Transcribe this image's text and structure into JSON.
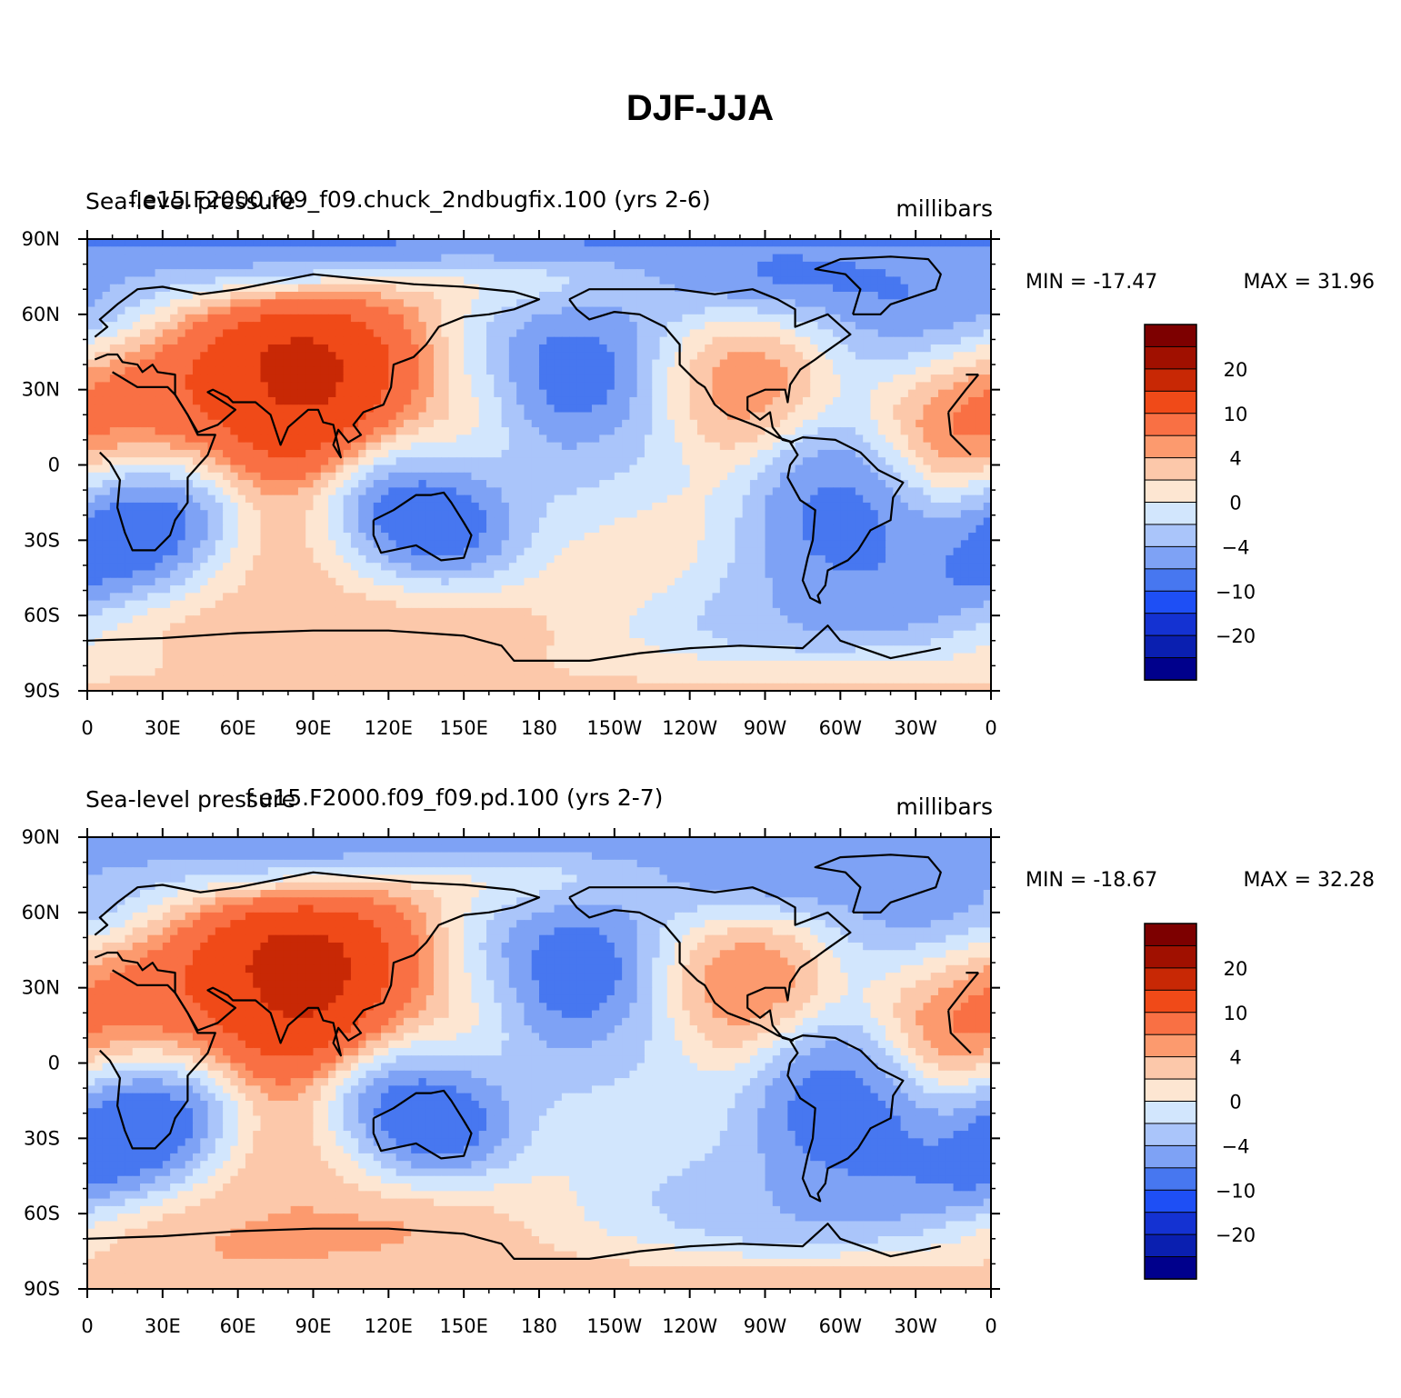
{
  "figure": {
    "title": "DJF-JJA"
  },
  "chart_data": [
    {
      "type": "heatmap",
      "title": "f.e15.F2000.f09_f09.chuck_2ndbugfix.100 (yrs 2-6)",
      "left_label": "Sea-level pressure",
      "units": "millibars",
      "min_label": "MIN = -17.47",
      "max_label": "MAX =  31.96",
      "min": -17.47,
      "max": 31.96,
      "lat_ticks": [
        "90N",
        "60N",
        "30N",
        "0",
        "30S",
        "60S",
        "90S"
      ],
      "lon_ticks": [
        "0",
        "30E",
        "60E",
        "90E",
        "120E",
        "150E",
        "180",
        "150W",
        "120W",
        "90W",
        "60W",
        "30W",
        "0"
      ],
      "colorbar_labels": [
        "20",
        "10",
        "4",
        "0",
        "-4",
        "-10",
        "-20"
      ],
      "field_features": [
        {
          "lon": 95,
          "lat": 45,
          "value": 26
        },
        {
          "lon": 75,
          "lat": 30,
          "value": 16
        },
        {
          "lon": 30,
          "lat": 28,
          "value": 13
        },
        {
          "lon": 140,
          "lat": 30,
          "value": 6
        },
        {
          "lon": 195,
          "lat": 45,
          "value": -15
        },
        {
          "lon": 160,
          "lat": 55,
          "value": -6
        },
        {
          "lon": 330,
          "lat": 62,
          "value": -15
        },
        {
          "lon": 10,
          "lat": 72,
          "value": -12
        },
        {
          "lon": 255,
          "lat": 42,
          "value": 9
        },
        {
          "lon": 350,
          "lat": 28,
          "value": 12
        },
        {
          "lon": 25,
          "lat": -22,
          "value": -13
        },
        {
          "lon": 130,
          "lat": -22,
          "value": -13
        },
        {
          "lon": 300,
          "lat": -20,
          "value": -9
        },
        {
          "lon": 210,
          "lat": 0,
          "value": -3
        },
        {
          "lon": 80,
          "lat": -48,
          "value": 8
        },
        {
          "lon": 230,
          "lat": -42,
          "value": 4
        },
        {
          "lon": 270,
          "lat": -62,
          "value": -8
        },
        {
          "lon": 90,
          "lat": -75,
          "value": 4
        },
        {
          "lon": 160,
          "lat": -78,
          "value": 6
        }
      ]
    },
    {
      "type": "heatmap",
      "title": "f.e15.F2000.f09_f09.pd.100 (yrs 2-7)",
      "left_label": "Sea-level pressure",
      "units": "millibars",
      "min_label": "MIN = -18.67",
      "max_label": "MAX =  32.28",
      "min": -18.67,
      "max": 32.28,
      "lat_ticks": [
        "90N",
        "60N",
        "30N",
        "0",
        "30S",
        "60S",
        "90S"
      ],
      "lon_ticks": [
        "0",
        "30E",
        "60E",
        "90E",
        "120E",
        "150E",
        "180",
        "150W",
        "120W",
        "90W",
        "60W",
        "30W",
        "0"
      ],
      "colorbar_labels": [
        "20",
        "10",
        "4",
        "0",
        "-4",
        "-10",
        "-20"
      ],
      "field_features": [
        {
          "lon": 95,
          "lat": 45,
          "value": 27
        },
        {
          "lon": 75,
          "lat": 30,
          "value": 17
        },
        {
          "lon": 30,
          "lat": 28,
          "value": 13
        },
        {
          "lon": 140,
          "lat": 30,
          "value": 6
        },
        {
          "lon": 195,
          "lat": 45,
          "value": -16
        },
        {
          "lon": 160,
          "lat": 55,
          "value": -6
        },
        {
          "lon": 330,
          "lat": 62,
          "value": -14
        },
        {
          "lon": 10,
          "lat": 72,
          "value": -11
        },
        {
          "lon": 255,
          "lat": 42,
          "value": 10
        },
        {
          "lon": 350,
          "lat": 28,
          "value": 12
        },
        {
          "lon": 25,
          "lat": -22,
          "value": -14
        },
        {
          "lon": 130,
          "lat": -22,
          "value": -13
        },
        {
          "lon": 300,
          "lat": -20,
          "value": -10
        },
        {
          "lon": 210,
          "lat": 0,
          "value": -3
        },
        {
          "lon": 80,
          "lat": -48,
          "value": 9
        },
        {
          "lon": 230,
          "lat": -42,
          "value": 3
        },
        {
          "lon": 240,
          "lat": -60,
          "value": -9
        },
        {
          "lon": 90,
          "lat": -75,
          "value": 5
        },
        {
          "lon": 170,
          "lat": -78,
          "value": 8
        }
      ]
    }
  ],
  "colors": {
    "levels": [
      -25,
      -20,
      -15,
      -10,
      -6,
      -4,
      -2,
      0,
      2,
      4,
      6,
      10,
      15,
      20,
      25
    ],
    "palette": [
      "#00008c",
      "#0a1fb0",
      "#1432d2",
      "#1e4ff5",
      "#4777f0",
      "#7ea2f5",
      "#aac5fa",
      "#d2e6fd",
      "#fde6d2",
      "#fcc8aa",
      "#fc9a6e",
      "#f97044",
      "#f04a18",
      "#c82805",
      "#a01000",
      "#7d0000"
    ]
  },
  "coastline_glyph_name": "coastlines"
}
